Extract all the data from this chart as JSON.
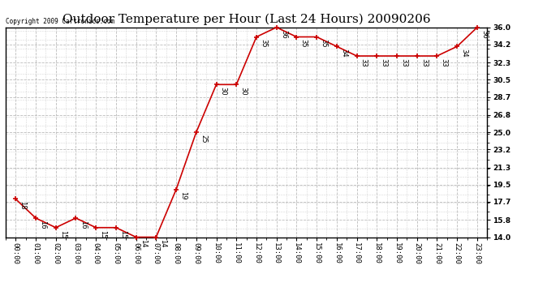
{
  "title": "Outdoor Temperature per Hour (Last 24 Hours) 20090206",
  "copyright": "Copyright 2009 Cartronics.com",
  "hours": [
    "00:00",
    "01:00",
    "02:00",
    "03:00",
    "04:00",
    "05:00",
    "06:00",
    "07:00",
    "08:00",
    "09:00",
    "10:00",
    "11:00",
    "12:00",
    "13:00",
    "14:00",
    "15:00",
    "16:00",
    "17:00",
    "18:00",
    "19:00",
    "20:00",
    "21:00",
    "22:00",
    "23:00"
  ],
  "temps": [
    18,
    16,
    15,
    16,
    15,
    15,
    14,
    14,
    19,
    25,
    30,
    30,
    35,
    36,
    35,
    35,
    34,
    33,
    33,
    33,
    33,
    33,
    34,
    36
  ],
  "yticks": [
    14.0,
    15.8,
    17.7,
    19.5,
    21.3,
    23.2,
    25.0,
    26.8,
    28.7,
    30.5,
    32.3,
    34.2,
    36.0
  ],
  "line_color": "#cc0000",
  "marker_color": "#cc0000",
  "bg_color": "#ffffff",
  "grid_color": "#bbbbbb",
  "title_fontsize": 11,
  "label_fontsize": 6,
  "tick_fontsize": 6.5,
  "copyright_fontsize": 5.5
}
